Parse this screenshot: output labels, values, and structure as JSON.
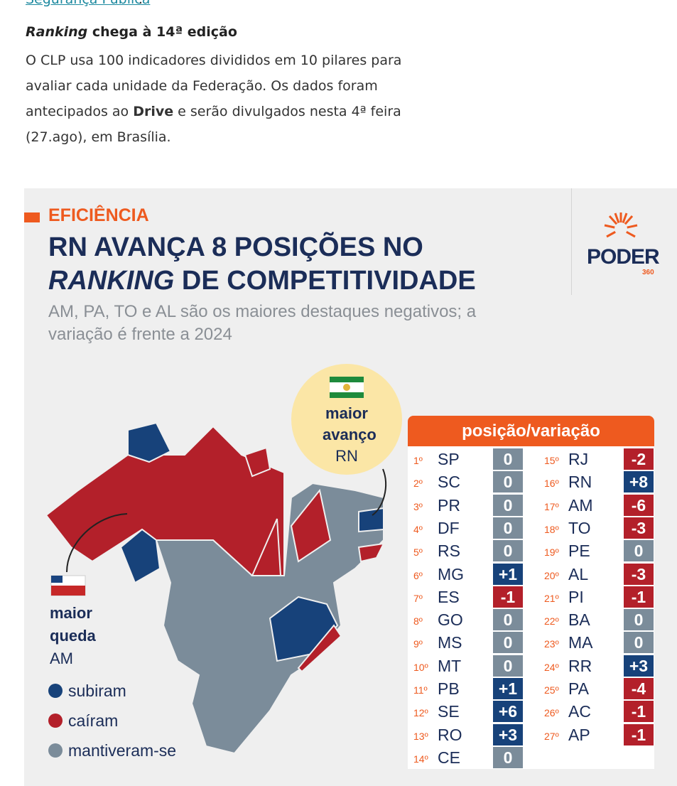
{
  "article": {
    "link_text": "Segurança Pública",
    "link_suffix": ".",
    "heading_italic": "Ranking",
    "heading_rest": " chega à 14ª edição",
    "paragraph": {
      "before": "O CLP usa 100 indicadores divididos em 10 pilares para avaliar cada unidade da Federação. Os dados foram antecipados ao ",
      "bold": "Drive",
      "after": " e serão divulgados nesta 4ª feira (27.ago), em Brasília."
    }
  },
  "infographic": {
    "kicker": "EFICIÊNCIA",
    "title_line1": "RN AVANÇA 8 POSIÇÕES NO",
    "title_line2_italic": "RANKING",
    "title_line2_rest": " DE COMPETITIVIDADE",
    "subtitle": "AM, PA, TO e AL são os maiores destaques negativos; a variação é frente a 2024",
    "logo": "PODER",
    "logo_sub": "360",
    "callout_top": {
      "line1": "maior",
      "line2": "avanço",
      "state": "RN"
    },
    "callout_bottom": {
      "line1": "maior",
      "line2": "queda",
      "state": "AM"
    },
    "legend": [
      {
        "label": "subiram",
        "color": "#17427a"
      },
      {
        "label": "caíram",
        "color": "#b3202a"
      },
      {
        "label": "mantiveram-se",
        "color": "#7b8c9a"
      }
    ],
    "table": {
      "header": "posição/variação",
      "rows": [
        [
          "1º",
          "SP",
          "0"
        ],
        [
          "2º",
          "SC",
          "0"
        ],
        [
          "3º",
          "PR",
          "0"
        ],
        [
          "4º",
          "DF",
          "0"
        ],
        [
          "5º",
          "RS",
          "0"
        ],
        [
          "6º",
          "MG",
          "+1"
        ],
        [
          "7º",
          "ES",
          "-1"
        ],
        [
          "8º",
          "GO",
          "0"
        ],
        [
          "9º",
          "MS",
          "0"
        ],
        [
          "10º",
          "MT",
          "0"
        ],
        [
          "11º",
          "PB",
          "+1"
        ],
        [
          "12º",
          "SE",
          "+6"
        ],
        [
          "13º",
          "RO",
          "+3"
        ],
        [
          "14º",
          "CE",
          "0"
        ],
        [
          "15º",
          "RJ",
          "-2"
        ],
        [
          "16º",
          "RN",
          "+8"
        ],
        [
          "17º",
          "AM",
          "-6"
        ],
        [
          "18º",
          "TO",
          "-3"
        ],
        [
          "19º",
          "PE",
          "0"
        ],
        [
          "20º",
          "AL",
          "-3"
        ],
        [
          "21º",
          "PI",
          "-1"
        ],
        [
          "22º",
          "BA",
          "0"
        ],
        [
          "23º",
          "MA",
          "0"
        ],
        [
          "24º",
          "RR",
          "+3"
        ],
        [
          "25º",
          "PA",
          "-4"
        ],
        [
          "26º",
          "AC",
          "-1"
        ],
        [
          "27º",
          "AP",
          "-1"
        ]
      ]
    }
  }
}
